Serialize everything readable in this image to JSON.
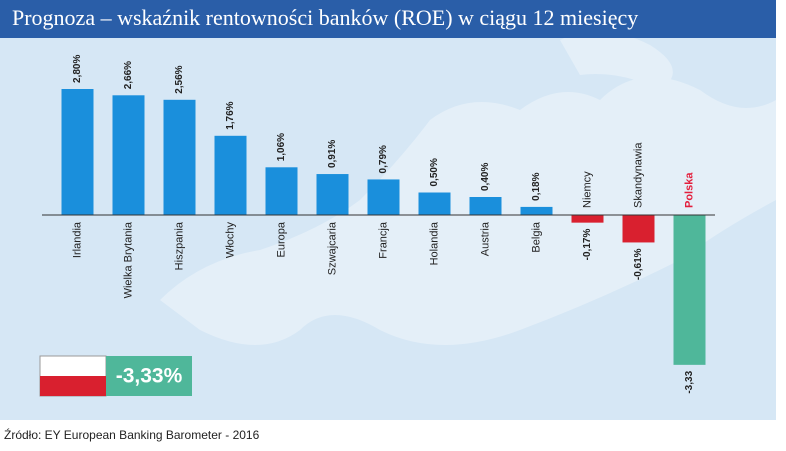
{
  "chart_data": {
    "type": "bar",
    "title": "Prognoza – wskaźnik rentowności banków (ROE) w ciągu 12 miesięcy",
    "categories": [
      "Irlandia",
      "Wielka Brytania",
      "Hiszpania",
      "Włochy",
      "Europa",
      "Szwajcaria",
      "Francja",
      "Holandia",
      "Austria",
      "Belgia",
      "Niemcy",
      "Skandynawia",
      "Polska"
    ],
    "values": [
      2.8,
      2.66,
      2.56,
      1.76,
      1.06,
      0.91,
      0.79,
      0.5,
      0.4,
      0.18,
      -0.17,
      -0.61,
      -3.33
    ],
    "value_labels": [
      "2,80%",
      "2,66%",
      "2,56%",
      "1,76%",
      "1,06%",
      "0,91%",
      "0,79%",
      "0,50%",
      "0,40%",
      "0,18%",
      "-0,17%",
      "-0,61%",
      "-3,33"
    ],
    "colors": [
      "#1a8fdc",
      "#1a8fdc",
      "#1a8fdc",
      "#1a8fdc",
      "#1a8fdc",
      "#1a8fdc",
      "#1a8fdc",
      "#1a8fdc",
      "#1a8fdc",
      "#1a8fdc",
      "#d9202f",
      "#d9202f",
      "#4fb79a"
    ],
    "highlight": {
      "index": 12,
      "color": "#e31e3c"
    },
    "ylim": [
      -3.5,
      3.0
    ],
    "badge": {
      "text": "-3,33%"
    },
    "source": "Źródło: EY European Banking Barometer - 2016"
  }
}
